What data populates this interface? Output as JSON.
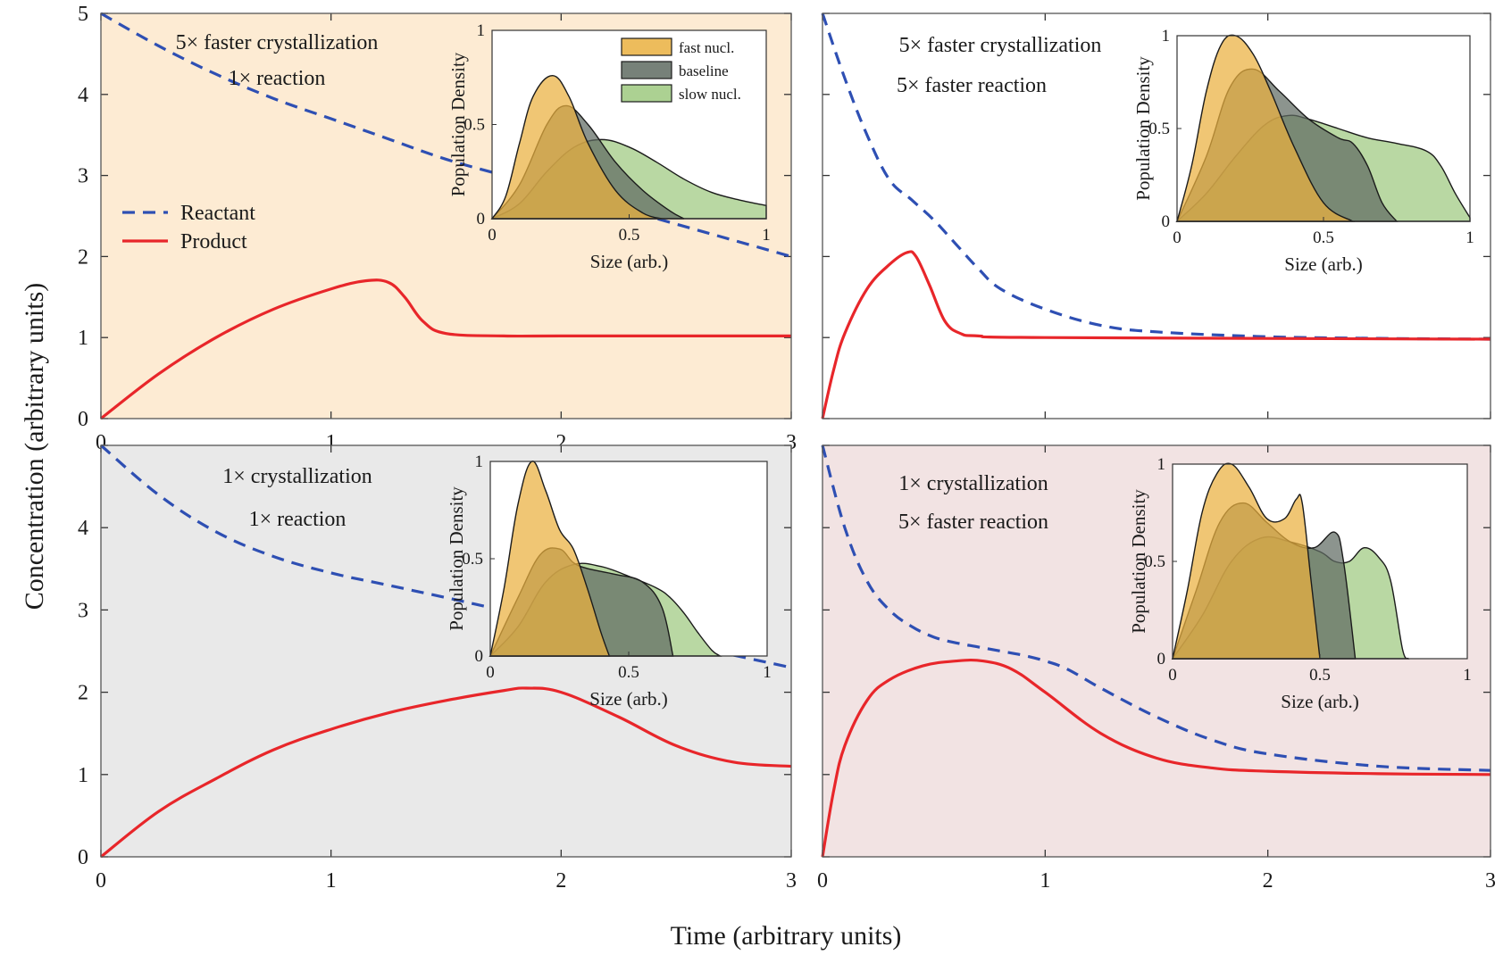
{
  "figure": {
    "xlabel": "Time (arbitrary units)",
    "ylabel": "Concentration (arbitrary units)"
  },
  "legend": {
    "reactant": "Reactant",
    "product": "Product"
  },
  "inset_legend": [
    "fast nucl.",
    "baseline",
    "slow nucl."
  ],
  "colors": {
    "reactant": "#2e4fb3",
    "product": "#e8262a",
    "fast_nucl": "#eab03f",
    "baseline": "#5f6b62",
    "slow_nucl": "#9ec97f",
    "bg_top_left": "#fdebd3",
    "bg_top_right": "#ffffff",
    "bg_bottom_left": "#e9e9e9",
    "bg_bottom_right": "#f2e3e3"
  },
  "chart_data": [
    {
      "type": "line",
      "panel": "top-left",
      "annotation": [
        "5× faster crystallization",
        "1× reaction"
      ],
      "xlim": [
        0,
        3
      ],
      "ylim": [
        0,
        5
      ],
      "xticks": [
        "0",
        "1",
        "2",
        "3"
      ],
      "yticks": [
        "0",
        "1",
        "2",
        "3",
        "4",
        "5"
      ],
      "show_legend": true,
      "series": [
        {
          "name": "Reactant",
          "style": "dashed",
          "x": [
            0,
            0.25,
            0.5,
            0.75,
            1.0,
            1.25,
            1.5,
            1.75,
            2.0,
            2.25,
            2.5,
            2.75,
            3.0
          ],
          "y": [
            5.0,
            4.6,
            4.25,
            3.95,
            3.7,
            3.45,
            3.2,
            3.0,
            2.8,
            2.6,
            2.4,
            2.2,
            2.0
          ]
        },
        {
          "name": "Product",
          "style": "solid",
          "x": [
            0,
            0.25,
            0.5,
            0.75,
            1.0,
            1.15,
            1.25,
            1.32,
            1.4,
            1.5,
            1.75,
            2.0,
            3.0
          ],
          "y": [
            0,
            0.55,
            1.0,
            1.35,
            1.6,
            1.7,
            1.68,
            1.5,
            1.2,
            1.05,
            1.02,
            1.02,
            1.02
          ]
        }
      ],
      "inset": {
        "xlabel": "Size (arb.)",
        "ylabel": "Population Density",
        "xlim": [
          0,
          1
        ],
        "ylim": [
          0,
          1
        ],
        "xticks": [
          "0",
          "0.5",
          "1"
        ],
        "yticks": [
          "0",
          "0.5",
          "1"
        ],
        "show_legend": true,
        "series": [
          {
            "name": "slow nucl.",
            "x": [
              0,
              0.1,
              0.2,
              0.3,
              0.4,
              0.5,
              0.6,
              0.7,
              0.8,
              0.9,
              1.0
            ],
            "y": [
              0,
              0.08,
              0.25,
              0.38,
              0.42,
              0.38,
              0.3,
              0.21,
              0.14,
              0.1,
              0.07
            ]
          },
          {
            "name": "baseline",
            "x": [
              0,
              0.1,
              0.2,
              0.27,
              0.35,
              0.45,
              0.55,
              0.65,
              0.7
            ],
            "y": [
              0,
              0.18,
              0.5,
              0.6,
              0.5,
              0.3,
              0.15,
              0.04,
              0
            ]
          },
          {
            "name": "fast nucl.",
            "x": [
              0,
              0.05,
              0.1,
              0.15,
              0.22,
              0.28,
              0.35,
              0.45,
              0.55,
              0.62
            ],
            "y": [
              0,
              0.12,
              0.4,
              0.65,
              0.76,
              0.65,
              0.4,
              0.15,
              0.03,
              0
            ]
          }
        ]
      }
    },
    {
      "type": "line",
      "panel": "top-right",
      "annotation": [
        "5× faster crystallization",
        "5× faster reaction"
      ],
      "xlim": [
        0,
        3
      ],
      "ylim": [
        0,
        5
      ],
      "xticks": [],
      "yticks": [],
      "show_legend": false,
      "series": [
        {
          "name": "Reactant",
          "style": "dashed",
          "x": [
            0,
            0.1,
            0.2,
            0.3,
            0.4,
            0.5,
            0.6,
            0.7,
            0.8,
            1.0,
            1.25,
            1.5,
            2.0,
            2.5,
            3.0
          ],
          "y": [
            5.0,
            4.2,
            3.5,
            2.95,
            2.7,
            2.45,
            2.15,
            1.85,
            1.6,
            1.35,
            1.15,
            1.07,
            1.01,
            0.99,
            0.98
          ]
        },
        {
          "name": "Product",
          "style": "solid",
          "x": [
            0,
            0.05,
            0.1,
            0.2,
            0.3,
            0.38,
            0.42,
            0.48,
            0.55,
            0.62,
            0.7,
            1.0,
            3.0
          ],
          "y": [
            0,
            0.6,
            1.05,
            1.6,
            1.9,
            2.05,
            2.0,
            1.65,
            1.2,
            1.05,
            1.02,
            1.0,
            0.98
          ]
        }
      ],
      "inset": {
        "xlabel": "Size (arb.)",
        "ylabel": "Population Density",
        "xlim": [
          0,
          1
        ],
        "ylim": [
          0,
          1
        ],
        "xticks": [
          "0",
          "0.5",
          "1"
        ],
        "yticks": [
          "0",
          "0.5",
          "1"
        ],
        "show_legend": false,
        "series": [
          {
            "name": "slow nucl.",
            "x": [
              0,
              0.1,
              0.2,
              0.3,
              0.38,
              0.45,
              0.55,
              0.65,
              0.75,
              0.85,
              0.9,
              0.95,
              1.0
            ],
            "y": [
              0,
              0.15,
              0.35,
              0.52,
              0.57,
              0.55,
              0.5,
              0.45,
              0.42,
              0.38,
              0.3,
              0.15,
              0.02
            ]
          },
          {
            "name": "baseline",
            "x": [
              0,
              0.1,
              0.18,
              0.26,
              0.35,
              0.45,
              0.55,
              0.6,
              0.65,
              0.7,
              0.75
            ],
            "y": [
              0,
              0.35,
              0.72,
              0.82,
              0.7,
              0.55,
              0.45,
              0.42,
              0.3,
              0.1,
              0
            ]
          },
          {
            "name": "fast nucl.",
            "x": [
              0,
              0.05,
              0.1,
              0.15,
              0.2,
              0.26,
              0.32,
              0.4,
              0.5,
              0.6
            ],
            "y": [
              0,
              0.3,
              0.7,
              0.95,
              1.0,
              0.9,
              0.7,
              0.4,
              0.1,
              0
            ]
          }
        ]
      }
    },
    {
      "type": "line",
      "panel": "bottom-left",
      "annotation": [
        "1× crystallization",
        "1× reaction"
      ],
      "xlim": [
        0,
        3
      ],
      "ylim": [
        0,
        5
      ],
      "xticks": [
        "0",
        "1",
        "2",
        "3"
      ],
      "yticks": [
        "0",
        "1",
        "2",
        "3",
        "4",
        ""
      ],
      "show_legend": false,
      "series": [
        {
          "name": "Reactant",
          "style": "dashed",
          "x": [
            0,
            0.25,
            0.5,
            0.75,
            1.0,
            1.25,
            1.5,
            1.75,
            2.0,
            2.25,
            2.5,
            2.75,
            3.0
          ],
          "y": [
            5.0,
            4.4,
            3.95,
            3.65,
            3.45,
            3.3,
            3.15,
            3.0,
            2.9,
            2.75,
            2.6,
            2.45,
            2.3
          ]
        },
        {
          "name": "Product",
          "style": "solid",
          "x": [
            0,
            0.25,
            0.5,
            0.75,
            1.0,
            1.25,
            1.5,
            1.75,
            1.85,
            2.0,
            2.25,
            2.5,
            2.75,
            3.0
          ],
          "y": [
            0,
            0.55,
            0.95,
            1.3,
            1.55,
            1.75,
            1.9,
            2.02,
            2.05,
            2.0,
            1.7,
            1.35,
            1.15,
            1.1
          ]
        }
      ],
      "inset": {
        "xlabel": "Size (arb.)",
        "ylabel": "Population Density",
        "xlim": [
          0,
          1
        ],
        "ylim": [
          0,
          1
        ],
        "xticks": [
          "0",
          "0.5",
          "1"
        ],
        "yticks": [
          "0",
          "0.5",
          "1"
        ],
        "show_legend": false,
        "series": [
          {
            "name": "slow nucl.",
            "x": [
              0,
              0.1,
              0.2,
              0.3,
              0.4,
              0.5,
              0.6,
              0.65,
              0.7,
              0.75,
              0.8,
              0.83
            ],
            "y": [
              0,
              0.15,
              0.38,
              0.47,
              0.46,
              0.41,
              0.35,
              0.3,
              0.22,
              0.12,
              0.03,
              0
            ]
          },
          {
            "name": "baseline",
            "x": [
              0,
              0.1,
              0.18,
              0.25,
              0.3,
              0.35,
              0.45,
              0.55,
              0.62,
              0.66
            ],
            "y": [
              0,
              0.3,
              0.52,
              0.55,
              0.48,
              0.45,
              0.42,
              0.38,
              0.25,
              0
            ]
          },
          {
            "name": "fast nucl.",
            "x": [
              0,
              0.05,
              0.1,
              0.15,
              0.2,
              0.25,
              0.3,
              0.35,
              0.4,
              0.43
            ],
            "y": [
              0,
              0.35,
              0.78,
              1.0,
              0.85,
              0.65,
              0.55,
              0.35,
              0.12,
              0
            ]
          }
        ]
      }
    },
    {
      "type": "line",
      "panel": "bottom-right",
      "annotation": [
        "1× crystallization",
        "5× faster reaction"
      ],
      "xlim": [
        0,
        3
      ],
      "ylim": [
        0,
        5
      ],
      "xticks": [
        "0",
        "1",
        "2",
        "3"
      ],
      "yticks": [],
      "show_legend": false,
      "series": [
        {
          "name": "Reactant",
          "style": "dashed",
          "x": [
            0,
            0.1,
            0.2,
            0.3,
            0.4,
            0.5,
            0.6,
            0.7,
            0.8,
            0.9,
            1.0,
            1.1,
            1.25,
            1.5,
            1.75,
            2.0,
            2.5,
            3.0
          ],
          "y": [
            5.0,
            4.0,
            3.35,
            3.0,
            2.8,
            2.67,
            2.6,
            2.55,
            2.5,
            2.45,
            2.38,
            2.28,
            2.05,
            1.7,
            1.42,
            1.25,
            1.1,
            1.05
          ]
        },
        {
          "name": "Product",
          "style": "solid",
          "x": [
            0,
            0.05,
            0.1,
            0.2,
            0.3,
            0.45,
            0.6,
            0.72,
            0.85,
            1.0,
            1.25,
            1.5,
            1.75,
            2.0,
            2.5,
            3.0
          ],
          "y": [
            0,
            0.8,
            1.35,
            1.9,
            2.15,
            2.32,
            2.38,
            2.38,
            2.28,
            2.0,
            1.5,
            1.2,
            1.08,
            1.04,
            1.01,
            1.0
          ]
        }
      ],
      "inset": {
        "xlabel": "Size (arb.)",
        "ylabel": "Population Density",
        "xlim": [
          0,
          1
        ],
        "ylim": [
          0,
          1
        ],
        "xticks": [
          "0",
          "0.5",
          "1"
        ],
        "yticks": [
          "0",
          "0.5",
          "1"
        ],
        "show_legend": false,
        "series": [
          {
            "name": "slow nucl.",
            "x": [
              0,
              0.1,
              0.2,
              0.3,
              0.4,
              0.5,
              0.55,
              0.6,
              0.65,
              0.7,
              0.74,
              0.78,
              0.8
            ],
            "y": [
              0,
              0.22,
              0.5,
              0.62,
              0.6,
              0.55,
              0.5,
              0.5,
              0.57,
              0.52,
              0.4,
              0.05,
              0
            ]
          },
          {
            "name": "baseline",
            "x": [
              0,
              0.08,
              0.16,
              0.24,
              0.32,
              0.4,
              0.48,
              0.55,
              0.58,
              0.62
            ],
            "y": [
              0,
              0.35,
              0.7,
              0.8,
              0.7,
              0.6,
              0.57,
              0.65,
              0.5,
              0
            ]
          },
          {
            "name": "fast nucl.",
            "x": [
              0,
              0.05,
              0.1,
              0.15,
              0.2,
              0.26,
              0.32,
              0.38,
              0.42,
              0.44,
              0.47,
              0.5
            ],
            "y": [
              0,
              0.35,
              0.75,
              0.95,
              1.0,
              0.88,
              0.72,
              0.72,
              0.82,
              0.8,
              0.4,
              0
            ]
          }
        ]
      }
    }
  ]
}
